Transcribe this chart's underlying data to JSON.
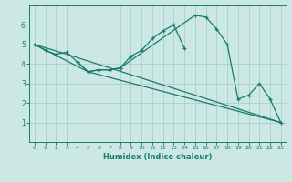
{
  "xlabel": "Humidex (Indice chaleur)",
  "background_color": "#cce8e4",
  "grid_color": "#aad0cc",
  "line_color": "#1a7a6e",
  "xlim": [
    -0.5,
    23.5
  ],
  "ylim": [
    0,
    7
  ],
  "xticks": [
    0,
    1,
    2,
    3,
    4,
    5,
    6,
    7,
    8,
    9,
    10,
    11,
    12,
    13,
    14,
    15,
    16,
    17,
    18,
    19,
    20,
    21,
    22,
    23
  ],
  "yticks": [
    1,
    2,
    3,
    4,
    5,
    6
  ],
  "line_wiggly": {
    "x": [
      0,
      1,
      2,
      3,
      4,
      5,
      6,
      7,
      8,
      9,
      10,
      11,
      12,
      13,
      14
    ],
    "y": [
      5.0,
      4.7,
      4.5,
      4.6,
      4.1,
      3.6,
      3.7,
      3.7,
      3.8,
      4.4,
      4.7,
      5.3,
      5.7,
      6.0,
      4.8
    ]
  },
  "line_jagged": {
    "x": [
      4,
      5,
      6,
      7,
      8,
      15,
      16,
      17,
      18,
      19,
      20,
      21,
      22,
      23
    ],
    "y": [
      4.1,
      3.6,
      3.7,
      3.7,
      3.8,
      6.5,
      6.4,
      5.8,
      5.0,
      2.2,
      2.4,
      3.0,
      2.2,
      1.0
    ]
  },
  "line_straight1": {
    "x": [
      0,
      3,
      23
    ],
    "y": [
      5.0,
      4.5,
      1.0
    ]
  },
  "line_straight2": {
    "x": [
      0,
      5,
      23
    ],
    "y": [
      5.0,
      3.6,
      1.0
    ]
  }
}
